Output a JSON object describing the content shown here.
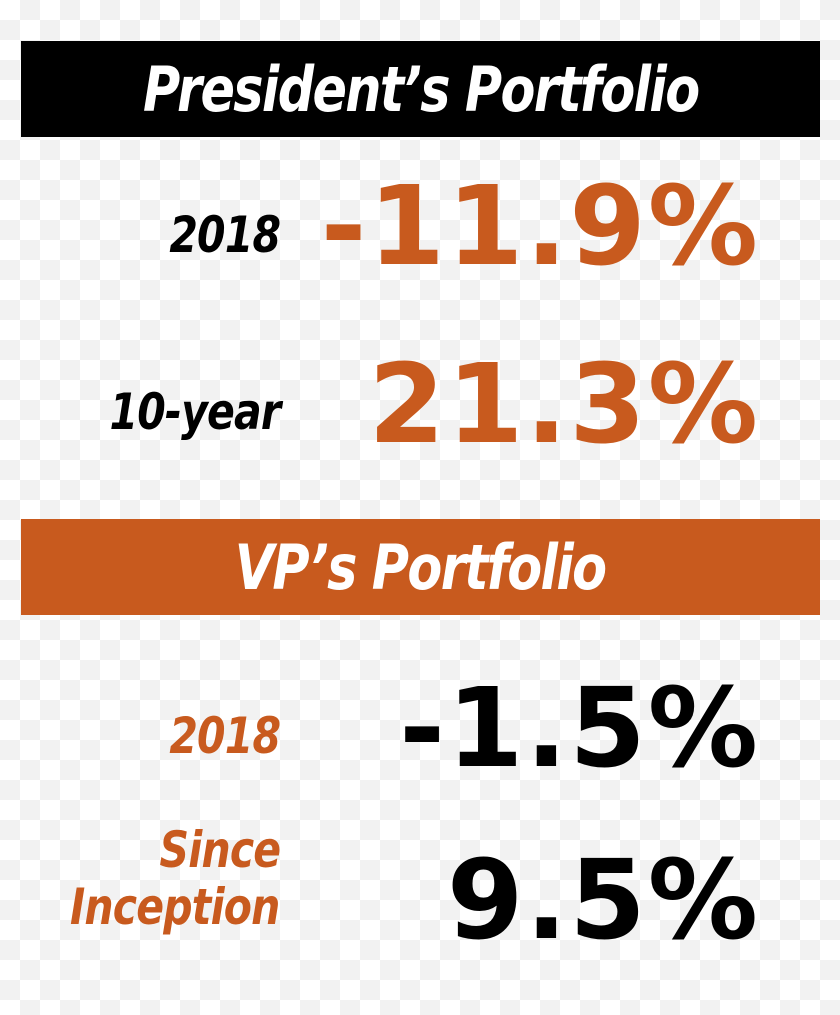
{
  "president": {
    "title": "President’s Portfolio",
    "rows": [
      {
        "label": "2018",
        "value": "-11.9%"
      },
      {
        "label": "10-year",
        "value": "21.3%"
      }
    ]
  },
  "vp": {
    "title": "VP’s Portfolio",
    "rows": [
      {
        "label": "2018",
        "value": "-1.5%"
      },
      {
        "label_line1": "Since",
        "label_line2": "Inception",
        "value": "9.5%"
      }
    ]
  },
  "colors": {
    "accent": "#c85a1e",
    "dark": "#000000",
    "text_on_banner": "#ffffff"
  }
}
